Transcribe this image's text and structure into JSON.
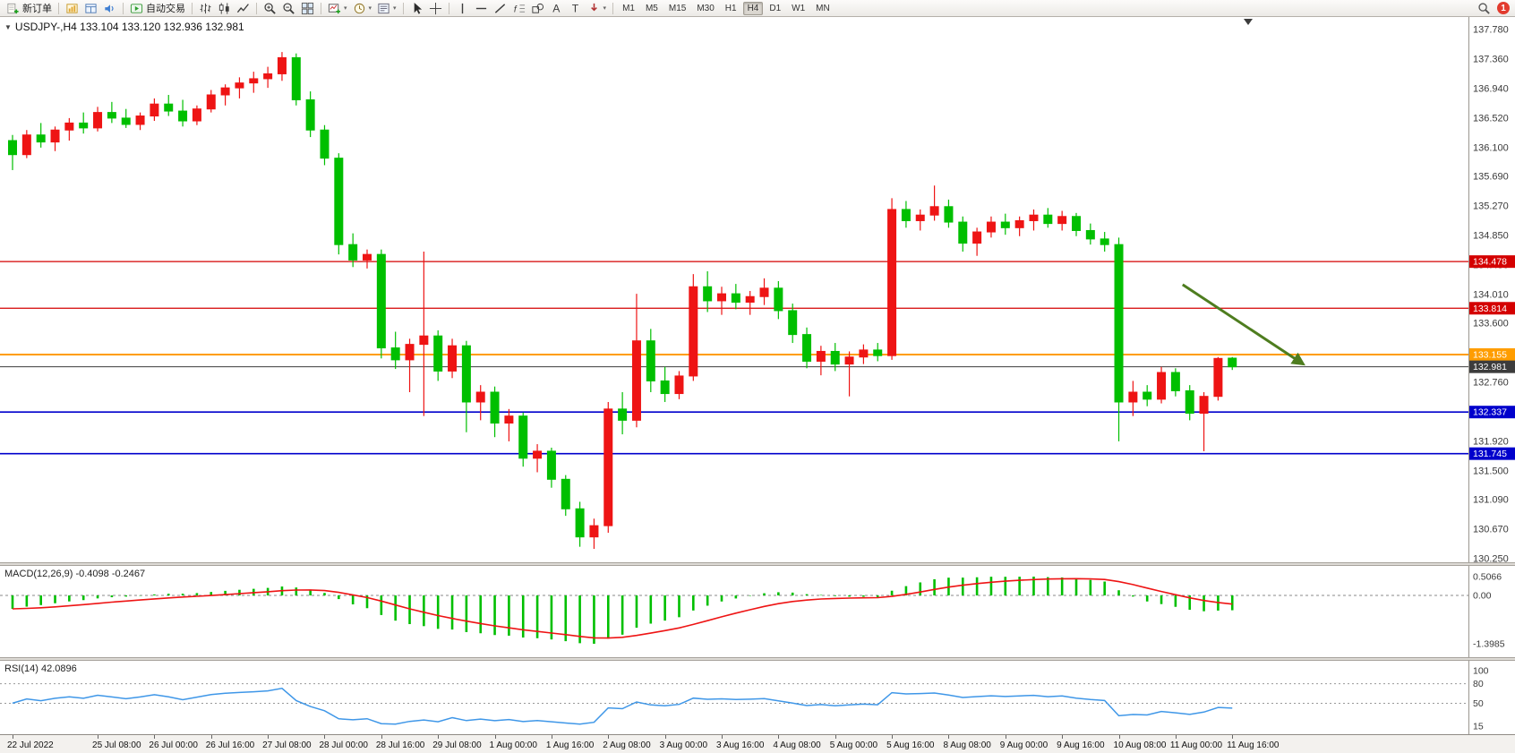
{
  "toolbar": {
    "groups": [
      {
        "items": [
          {
            "icon": "new-order",
            "label": "新订单",
            "name": "new-order"
          }
        ]
      },
      {
        "items": [
          {
            "icon": "market-watch",
            "name": "market-watch"
          },
          {
            "icon": "data-window",
            "name": "data-window"
          },
          {
            "icon": "sound",
            "name": "sound-alerts"
          }
        ]
      },
      {
        "items": [
          {
            "icon": "autotrading",
            "label": "自动交易",
            "name": "autotrading"
          }
        ]
      },
      {
        "items": [
          {
            "icon": "bar-chart",
            "name": "bar-chart-mode"
          },
          {
            "icon": "candlestick",
            "name": "candlestick-mode"
          },
          {
            "icon": "line-chart",
            "name": "line-chart-mode"
          }
        ]
      },
      {
        "items": [
          {
            "icon": "zoom-in",
            "name": "zoom-in"
          },
          {
            "icon": "zoom-out",
            "name": "zoom-out"
          },
          {
            "icon": "tile-windows",
            "name": "tile-windows"
          }
        ]
      },
      {
        "items": [
          {
            "icon": "new-chart",
            "name": "new-chart",
            "dropdown": true
          },
          {
            "icon": "profiles",
            "name": "profiles",
            "dropdown": true
          },
          {
            "icon": "templates",
            "name": "templates",
            "dropdown": true
          }
        ]
      },
      {
        "items": [
          {
            "icon": "cursor",
            "name": "cursor-tool"
          },
          {
            "icon": "crosshair",
            "name": "crosshair-tool"
          }
        ]
      },
      {
        "items": [
          {
            "icon": "vline",
            "name": "vertical-line-tool"
          },
          {
            "icon": "hline",
            "name": "horizontal-line-tool"
          },
          {
            "icon": "trendline",
            "name": "trendline-tool"
          },
          {
            "icon": "fibo",
            "name": "fibonacci-tool"
          },
          {
            "icon": "shapes",
            "name": "shapes-tool"
          },
          {
            "icon": "text-a",
            "name": "text-tool"
          },
          {
            "icon": "text-label",
            "name": "label-tool"
          },
          {
            "icon": "arrows",
            "name": "arrows-tool",
            "dropdown": true
          }
        ]
      }
    ],
    "timeframes": [
      "M1",
      "M5",
      "M15",
      "M30",
      "H1",
      "H4",
      "D1",
      "W1",
      "MN"
    ],
    "active_timeframe": "H4",
    "badge": "1"
  },
  "chart": {
    "title": "USDJPY-,H4 133.104 133.120 132.936 132.981",
    "symbol": "USDJPY-",
    "period": "H4",
    "open": "133.104",
    "high": "133.120",
    "low": "132.936",
    "close": "132.981",
    "price_axis_labels": [
      "137.780",
      "137.360",
      "136.940",
      "136.520",
      "136.100",
      "135.690",
      "135.270",
      "134.850",
      "134.430",
      "134.010",
      "133.600",
      "133.180",
      "132.760",
      "132.340",
      "131.920",
      "131.500",
      "131.090",
      "130.670",
      "130.250"
    ],
    "lines": [
      {
        "price": 134.478,
        "label": "134.478",
        "color": "#d40000",
        "width": 1.2,
        "name": "resistance-line-1"
      },
      {
        "price": 133.814,
        "label": "133.814",
        "color": "#d40000",
        "width": 1.2,
        "name": "resistance-line-2"
      },
      {
        "price": 133.155,
        "label": "133.155",
        "color": "#ff9d00",
        "width": 2,
        "name": "pivot-line"
      },
      {
        "price": 132.981,
        "label": "132.981",
        "color": "#3c3c3c",
        "width": 1,
        "name": "current-price-line"
      },
      {
        "price": 132.337,
        "label": "132.337",
        "color": "#0000cc",
        "width": 1.6,
        "name": "support-line-1"
      },
      {
        "price": 131.745,
        "label": "131.745",
        "color": "#0000cc",
        "width": 1.6,
        "name": "support-line-2"
      }
    ],
    "arrow": {
      "from": {
        "index": 82.5,
        "price": 134.15
      },
      "to": {
        "index": 91,
        "price": 133.02
      },
      "color": "#4e7d1f"
    }
  },
  "macd": {
    "title": "MACD(12,26,9) -0.4098 -0.2467",
    "name": "MACD",
    "params": "12,26,9",
    "values": [
      "-0.4098",
      "-0.2467"
    ],
    "axis_labels": [
      "0.5066",
      "0.00",
      "-1.3985"
    ]
  },
  "rsi": {
    "title": "RSI(14) 42.0896",
    "name": "RSI",
    "params": "14",
    "value": "42.0896",
    "axis_labels": [
      "100",
      "80",
      "50",
      "15"
    ],
    "levels": [
      80,
      50
    ]
  },
  "colors": {
    "bull_up": "#ee1414",
    "bear_down": "#00bf00",
    "macd_histogram": "#00bf00",
    "macd_signal": "#ee1414",
    "rsi_line": "#3f97e8"
  },
  "chart_data": {
    "type": "candlestick",
    "symbol": "USDJPY-",
    "timeframe": "H4",
    "y_range": [
      130.25,
      137.78
    ],
    "ohlc": [
      [
        136.2,
        136.28,
        135.78,
        136.0
      ],
      [
        136.0,
        136.35,
        135.95,
        136.28
      ],
      [
        136.28,
        136.45,
        136.1,
        136.18
      ],
      [
        136.18,
        136.4,
        136.05,
        136.35
      ],
      [
        136.35,
        136.52,
        136.2,
        136.45
      ],
      [
        136.45,
        136.6,
        136.3,
        136.38
      ],
      [
        136.38,
        136.68,
        136.33,
        136.6
      ],
      [
        136.6,
        136.75,
        136.45,
        136.52
      ],
      [
        136.52,
        136.65,
        136.38,
        136.43
      ],
      [
        136.43,
        136.6,
        136.35,
        136.55
      ],
      [
        136.55,
        136.8,
        136.48,
        136.72
      ],
      [
        136.72,
        136.85,
        136.55,
        136.62
      ],
      [
        136.62,
        136.78,
        136.4,
        136.48
      ],
      [
        136.48,
        136.7,
        136.42,
        136.65
      ],
      [
        136.65,
        136.92,
        136.6,
        136.85
      ],
      [
        136.85,
        137.0,
        136.7,
        136.95
      ],
      [
        136.95,
        137.1,
        136.8,
        137.02
      ],
      [
        137.02,
        137.18,
        136.88,
        137.08
      ],
      [
        137.08,
        137.25,
        136.95,
        137.15
      ],
      [
        137.15,
        137.46,
        137.05,
        137.38
      ],
      [
        137.38,
        137.44,
        136.7,
        136.78
      ],
      [
        136.78,
        136.9,
        136.25,
        136.35
      ],
      [
        136.35,
        136.42,
        135.85,
        135.95
      ],
      [
        135.95,
        136.02,
        134.58,
        134.72
      ],
      [
        134.72,
        134.88,
        134.4,
        134.5
      ],
      [
        134.5,
        134.65,
        134.38,
        134.58
      ],
      [
        134.58,
        134.65,
        133.1,
        133.25
      ],
      [
        133.25,
        133.48,
        132.95,
        133.08
      ],
      [
        133.08,
        133.38,
        132.62,
        133.3
      ],
      [
        133.3,
        134.62,
        132.28,
        133.42
      ],
      [
        133.42,
        133.5,
        132.78,
        132.92
      ],
      [
        132.92,
        133.38,
        132.82,
        133.28
      ],
      [
        133.28,
        133.35,
        132.05,
        132.48
      ],
      [
        132.48,
        132.72,
        132.22,
        132.62
      ],
      [
        132.62,
        132.7,
        131.98,
        132.18
      ],
      [
        132.18,
        132.38,
        131.92,
        132.28
      ],
      [
        132.28,
        132.33,
        131.56,
        131.68
      ],
      [
        131.68,
        131.88,
        131.48,
        131.78
      ],
      [
        131.78,
        131.83,
        131.26,
        131.38
      ],
      [
        131.38,
        131.44,
        130.86,
        130.96
      ],
      [
        130.96,
        131.06,
        130.42,
        130.56
      ],
      [
        130.56,
        130.82,
        130.39,
        130.72
      ],
      [
        130.72,
        132.48,
        130.62,
        132.38
      ],
      [
        132.38,
        132.62,
        132.02,
        132.22
      ],
      [
        132.22,
        134.02,
        132.12,
        133.35
      ],
      [
        133.35,
        133.52,
        132.62,
        132.78
      ],
      [
        132.78,
        132.98,
        132.48,
        132.6
      ],
      [
        132.6,
        132.92,
        132.52,
        132.85
      ],
      [
        132.85,
        134.3,
        132.78,
        134.12
      ],
      [
        134.12,
        134.34,
        133.76,
        133.92
      ],
      [
        133.92,
        134.12,
        133.72,
        134.02
      ],
      [
        134.02,
        134.16,
        133.8,
        133.9
      ],
      [
        133.9,
        134.06,
        133.72,
        133.98
      ],
      [
        133.98,
        134.24,
        133.86,
        134.1
      ],
      [
        134.1,
        134.2,
        133.66,
        133.78
      ],
      [
        133.78,
        133.88,
        133.32,
        133.44
      ],
      [
        133.44,
        133.54,
        132.96,
        133.06
      ],
      [
        133.06,
        133.28,
        132.86,
        133.2
      ],
      [
        133.2,
        133.32,
        132.92,
        133.02
      ],
      [
        133.02,
        133.2,
        132.56,
        133.12
      ],
      [
        133.12,
        133.3,
        133.02,
        133.22
      ],
      [
        133.22,
        133.32,
        133.06,
        133.14
      ],
      [
        133.14,
        135.38,
        133.08,
        135.22
      ],
      [
        135.22,
        135.34,
        134.96,
        135.06
      ],
      [
        135.06,
        135.22,
        134.92,
        135.14
      ],
      [
        135.14,
        135.56,
        135.06,
        135.26
      ],
      [
        135.26,
        135.36,
        134.96,
        135.04
      ],
      [
        135.04,
        135.12,
        134.62,
        134.74
      ],
      [
        134.74,
        134.96,
        134.56,
        134.9
      ],
      [
        134.9,
        135.12,
        134.82,
        135.04
      ],
      [
        135.04,
        135.16,
        134.86,
        134.96
      ],
      [
        134.96,
        135.12,
        134.84,
        135.06
      ],
      [
        135.06,
        135.22,
        134.92,
        135.14
      ],
      [
        135.14,
        135.24,
        134.96,
        135.02
      ],
      [
        135.02,
        135.2,
        134.92,
        135.12
      ],
      [
        135.12,
        135.17,
        134.84,
        134.92
      ],
      [
        134.92,
        135.02,
        134.72,
        134.8
      ],
      [
        134.8,
        134.9,
        134.62,
        134.72
      ],
      [
        134.72,
        134.82,
        131.92,
        132.48
      ],
      [
        132.48,
        132.78,
        132.28,
        132.62
      ],
      [
        132.62,
        132.72,
        132.42,
        132.52
      ],
      [
        132.52,
        132.98,
        132.46,
        132.9
      ],
      [
        132.9,
        132.96,
        132.56,
        132.64
      ],
      [
        132.64,
        132.72,
        132.22,
        132.32
      ],
      [
        132.32,
        132.62,
        131.78,
        132.56
      ],
      [
        132.56,
        133.12,
        132.5,
        133.1
      ],
      [
        133.104,
        133.12,
        132.936,
        132.981
      ]
    ],
    "time_labels": [
      {
        "i": 0,
        "t": "22 Jul 2022"
      },
      {
        "i": 6,
        "t": "25 Jul 08:00"
      },
      {
        "i": 10,
        "t": "26 Jul 00:00"
      },
      {
        "i": 14,
        "t": "26 Jul 16:00"
      },
      {
        "i": 18,
        "t": "27 Jul 08:00"
      },
      {
        "i": 22,
        "t": "28 Jul 00:00"
      },
      {
        "i": 26,
        "t": "28 Jul 16:00"
      },
      {
        "i": 30,
        "t": "29 Jul 08:00"
      },
      {
        "i": 34,
        "t": "1 Aug 00:00"
      },
      {
        "i": 38,
        "t": "1 Aug 16:00"
      },
      {
        "i": 42,
        "t": "2 Aug 08:00"
      },
      {
        "i": 46,
        "t": "3 Aug 00:00"
      },
      {
        "i": 50,
        "t": "3 Aug 16:00"
      },
      {
        "i": 54,
        "t": "4 Aug 08:00"
      },
      {
        "i": 58,
        "t": "5 Aug 00:00"
      },
      {
        "i": 62,
        "t": "5 Aug 16:00"
      },
      {
        "i": 66,
        "t": "8 Aug 08:00"
      },
      {
        "i": 70,
        "t": "9 Aug 00:00"
      },
      {
        "i": 74,
        "t": "9 Aug 16:00"
      },
      {
        "i": 78,
        "t": "10 Aug 08:00"
      },
      {
        "i": 82,
        "t": "11 Aug 00:00"
      },
      {
        "i": 86,
        "t": "11 Aug 16:00"
      }
    ],
    "horizontal_lines": [
      134.478,
      133.814,
      133.155,
      132.981,
      132.337,
      131.745
    ],
    "indicators": [
      {
        "type": "MACD",
        "params": [
          12,
          26,
          9
        ],
        "display_values": [
          -0.4098,
          -0.2467
        ],
        "axis_labels": [
          "0.5066",
          "0.00",
          "-1.3985"
        ]
      },
      {
        "type": "RSI",
        "params": [
          14
        ],
        "display_value": 42.0896,
        "axis_labels": [
          "100",
          "80",
          "50",
          "15"
        ]
      }
    ]
  }
}
